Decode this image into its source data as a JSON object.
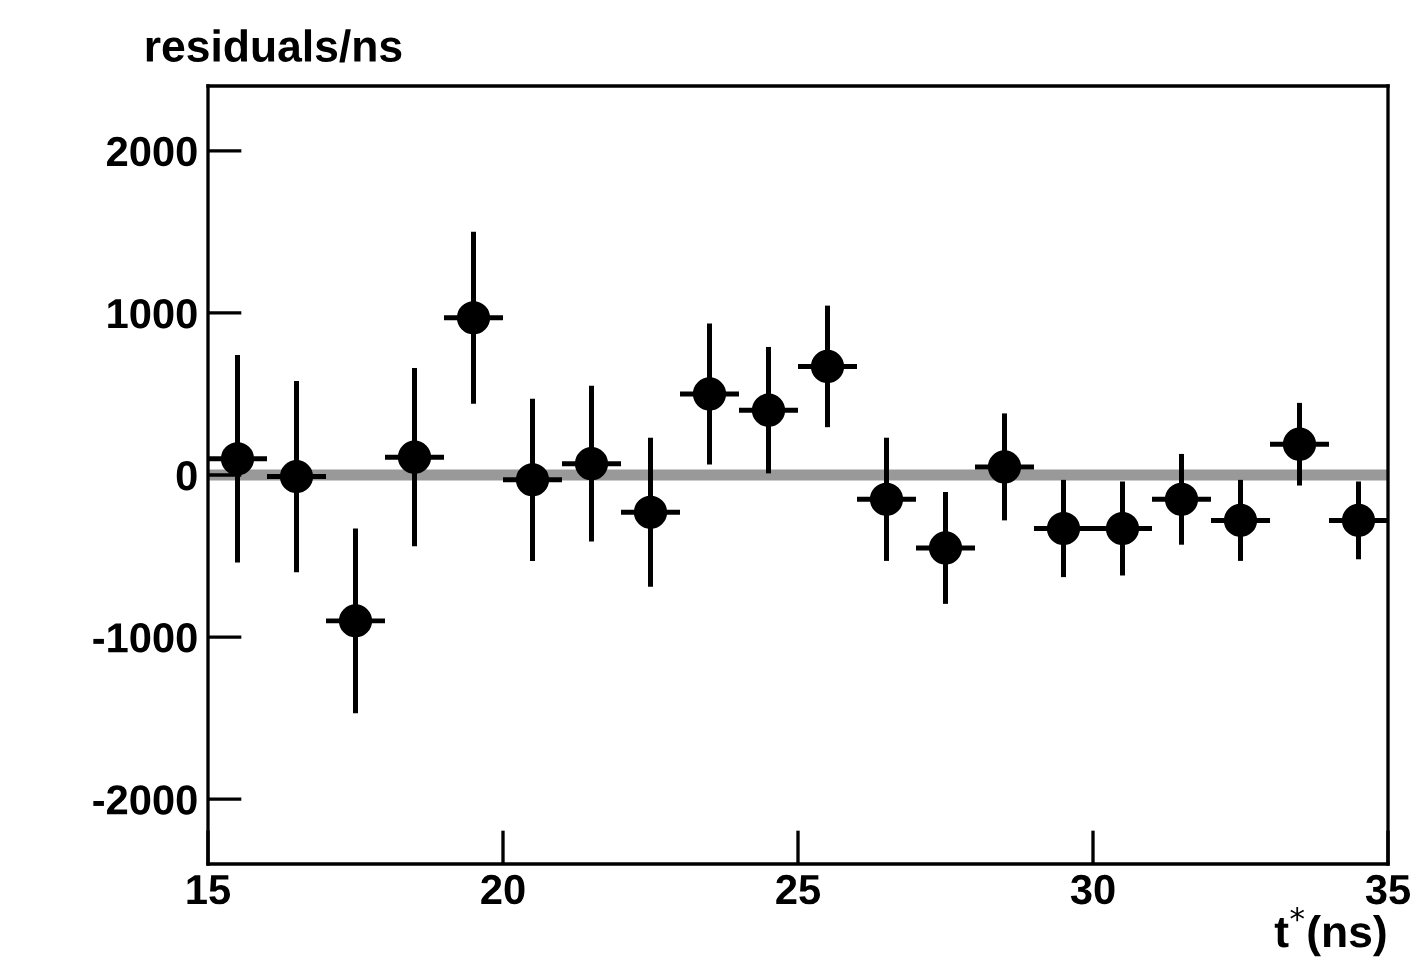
{
  "chart_data": {
    "type": "scatter",
    "title": "residuals/ns",
    "xlabel": "t$^{*}$(ns)",
    "x": [
      15.5,
      16.5,
      17.5,
      18.5,
      19.5,
      20.5,
      21.5,
      22.5,
      23.5,
      24.5,
      25.5,
      26.5,
      27.5,
      28.5,
      29.5,
      30.5,
      31.5,
      32.5,
      33.5,
      34.5
    ],
    "values": [
      100,
      -10,
      -900,
      110,
      970,
      -30,
      70,
      -230,
      500,
      400,
      670,
      -150,
      -450,
      50,
      -330,
      -330,
      -150,
      -280,
      190,
      -280
    ],
    "errors": [
      640,
      590,
      570,
      550,
      530,
      500,
      480,
      460,
      435,
      390,
      375,
      380,
      345,
      330,
      300,
      290,
      280,
      250,
      255,
      240
    ],
    "xerrors": [
      0.5,
      0.5,
      0.5,
      0.5,
      0.5,
      0.5,
      0.5,
      0.5,
      0.5,
      0.5,
      0.5,
      0.5,
      0.5,
      0.5,
      0.5,
      0.5,
      0.5,
      0.5,
      0.5,
      0.5
    ],
    "color": "#000000",
    "marker": "circle",
    "xlim": [
      15,
      35
    ],
    "xticks": [
      15,
      20,
      25,
      30,
      35
    ],
    "ylim": [
      -2400,
      2400
    ],
    "yticks": [
      -2000,
      -1000,
      0,
      1000,
      2000
    ],
    "ref_lines": [
      {
        "axis": "y",
        "value": 0,
        "color": "#999999"
      }
    ],
    "grid": false,
    "legend": false
  }
}
